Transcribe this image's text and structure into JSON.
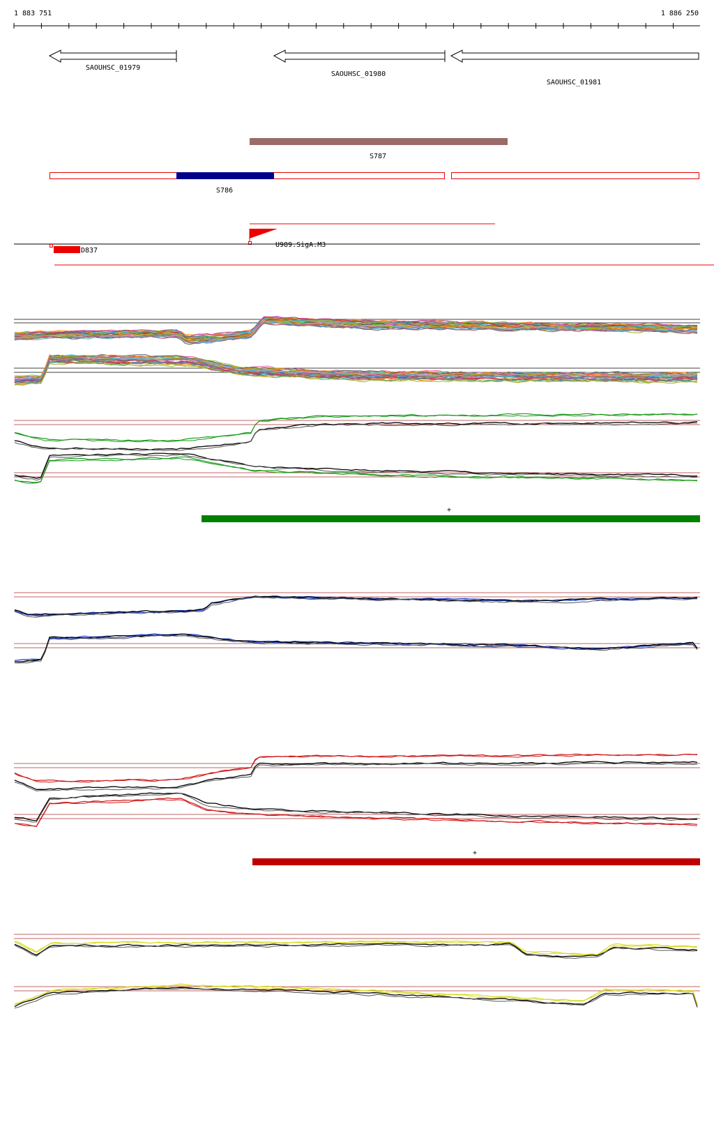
{
  "ruler": {
    "start": "1 883 751",
    "end": "1 886 250"
  },
  "genes": [
    {
      "label": "SAOUHSC_01979"
    },
    {
      "label": "SAOUHSC_01980"
    },
    {
      "label": "SAOUHSC_01981"
    }
  ],
  "features": [
    {
      "label": "S787"
    },
    {
      "label": "S786"
    },
    {
      "label": "U989.SigA.M3"
    },
    {
      "label": "D837"
    }
  ],
  "strand_markers": [
    "+",
    "+"
  ]
}
